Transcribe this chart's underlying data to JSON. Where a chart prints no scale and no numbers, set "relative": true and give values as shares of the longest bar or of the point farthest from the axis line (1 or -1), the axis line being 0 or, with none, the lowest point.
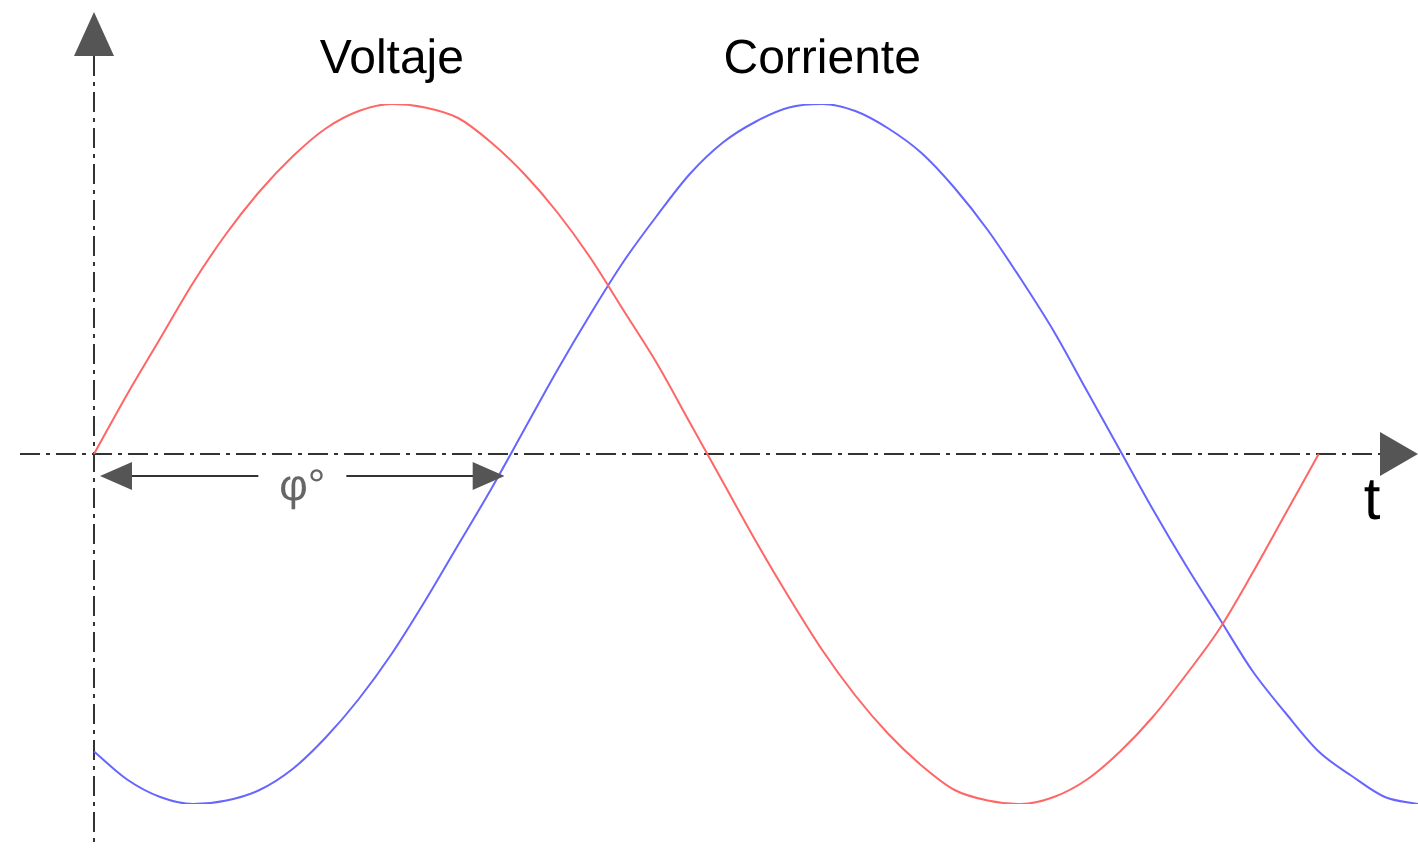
{
  "chart_data": {
    "type": "line",
    "relative": true,
    "xlabel": "t",
    "legend": false,
    "marker": "none",
    "line_style": "solid",
    "categories": [
      null,
      null,
      null,
      null,
      null,
      null,
      null,
      null,
      null,
      null,
      null,
      null,
      null,
      null,
      null,
      null,
      null,
      null,
      null,
      null,
      null,
      null,
      null,
      null,
      null,
      null,
      null,
      null,
      null,
      null,
      null,
      null,
      null,
      null,
      null,
      null,
      null,
      null,
      null,
      null,
      null
    ],
    "series": [
      {
        "name": "Voltaje",
        "color": "#ff6666",
        "values": [
          0,
          0.17,
          0.33,
          0.49,
          0.63,
          0.75,
          0.85,
          0.93,
          0.98,
          1,
          0.99,
          0.96,
          0.89,
          0.8,
          0.69,
          0.56,
          0.41,
          0.26,
          0.09,
          -0.08,
          -0.25,
          -0.41,
          -0.56,
          -0.69,
          -0.8,
          -0.89,
          -0.96,
          -0.99,
          -1,
          -0.98,
          -0.93,
          -0.85,
          -0.75,
          -0.63,
          -0.5,
          -0.34,
          -0.17,
          0,
          null,
          null,
          null
        ]
      },
      {
        "name": "Corriente",
        "color": "#6666ff",
        "values": [
          -0.85,
          -0.93,
          -0.98,
          -1,
          -0.99,
          -0.96,
          -0.9,
          -0.81,
          -0.7,
          -0.57,
          -0.42,
          -0.26,
          -0.1,
          0.07,
          0.24,
          0.4,
          0.55,
          0.68,
          0.8,
          0.89,
          0.95,
          0.99,
          1,
          0.98,
          0.93,
          0.86,
          0.76,
          0.64,
          0.5,
          0.35,
          0.18,
          0.01,
          -0.16,
          -0.32,
          -0.47,
          -0.62,
          -0.74,
          -0.85,
          -0.92,
          -0.98,
          -1
        ]
      }
    ],
    "annotations": [
      "φ°"
    ]
  }
}
